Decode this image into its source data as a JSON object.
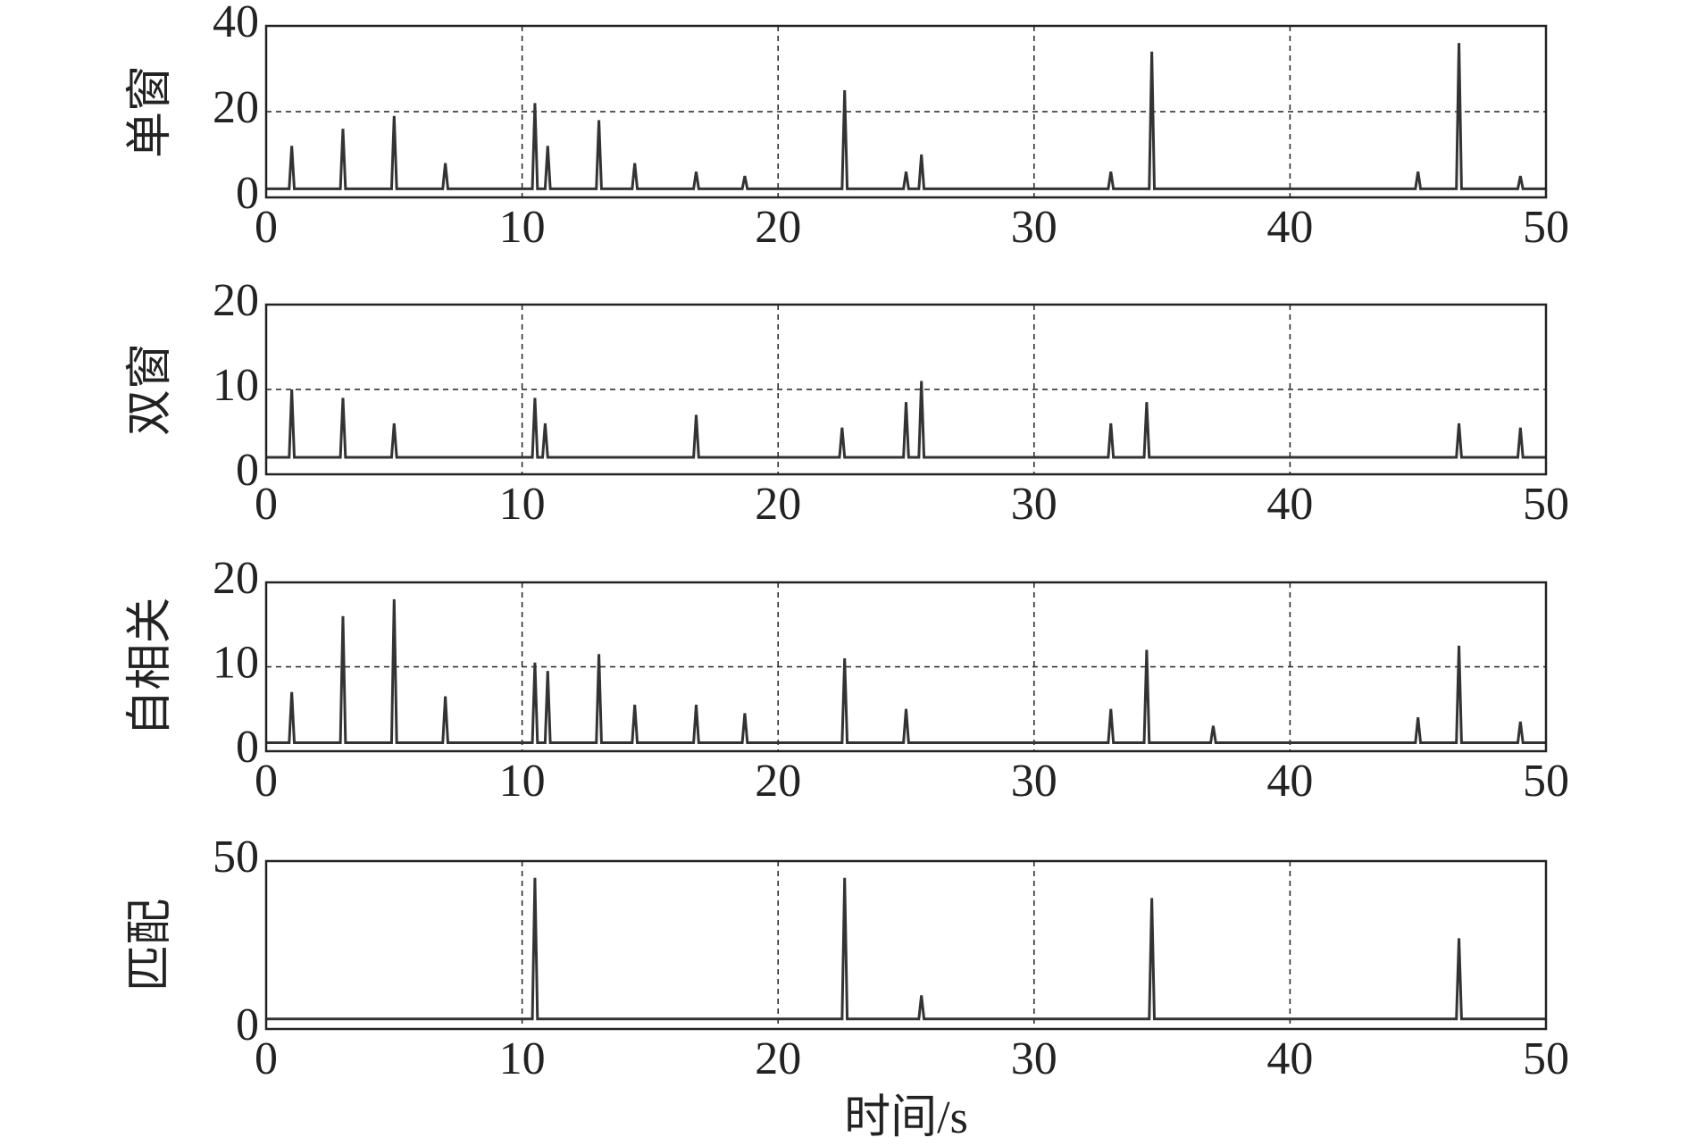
{
  "chart_data": [
    {
      "type": "line",
      "ylabel": "单窗",
      "xlim": [
        0,
        50
      ],
      "xticks": [
        0,
        10,
        20,
        30,
        40,
        50
      ],
      "ylim": [
        0,
        40
      ],
      "yticks": [
        0,
        20,
        40
      ],
      "grid": true,
      "color": "#333333",
      "x": [
        0,
        0.9,
        1.0,
        1.1,
        2.9,
        3.0,
        3.1,
        4.9,
        5.0,
        5.1,
        6.9,
        7.0,
        7.1,
        10.4,
        10.5,
        10.6,
        10.9,
        11.0,
        11.1,
        12.9,
        13.0,
        13.1,
        14.3,
        14.4,
        14.5,
        16.7,
        16.8,
        16.9,
        18.6,
        18.7,
        18.8,
        22.5,
        22.6,
        22.7,
        24.9,
        25.0,
        25.1,
        25.5,
        25.6,
        25.7,
        32.9,
        33.0,
        33.1,
        34.5,
        34.6,
        34.7,
        44.9,
        45.0,
        45.1,
        46.5,
        46.6,
        46.7,
        48.9,
        49.0,
        49.1,
        50
      ],
      "values": [
        2,
        2,
        12,
        2,
        2,
        16,
        2,
        2,
        19,
        2,
        2,
        8,
        2,
        2,
        22,
        2,
        2,
        12,
        2,
        2,
        18,
        2,
        2,
        8,
        2,
        2,
        6,
        2,
        2,
        5,
        2,
        2,
        25,
        2,
        2,
        6,
        2,
        2,
        10,
        2,
        2,
        6,
        2,
        2,
        34,
        2,
        2,
        6,
        2,
        2,
        36,
        2,
        2,
        5,
        2,
        2
      ]
    },
    {
      "type": "line",
      "ylabel": "双窗",
      "xlim": [
        0,
        50
      ],
      "xticks": [
        0,
        10,
        20,
        30,
        40,
        50
      ],
      "ylim": [
        0,
        20
      ],
      "yticks": [
        0,
        10,
        20
      ],
      "grid": true,
      "color": "#333333",
      "x": [
        0,
        0.9,
        1.0,
        1.1,
        2.9,
        3.0,
        3.1,
        4.9,
        5.0,
        5.1,
        10.4,
        10.5,
        10.6,
        10.8,
        10.9,
        11.0,
        16.7,
        16.8,
        16.9,
        22.4,
        22.5,
        22.6,
        24.9,
        25.0,
        25.1,
        25.5,
        25.6,
        25.7,
        32.9,
        33.0,
        33.1,
        34.3,
        34.4,
        34.5,
        46.5,
        46.6,
        46.7,
        48.9,
        49.0,
        49.1,
        50
      ],
      "values": [
        2,
        2,
        10,
        2,
        2,
        9,
        2,
        2,
        6,
        2,
        2,
        9,
        2,
        2,
        6,
        2,
        2,
        7,
        2,
        2,
        5.5,
        2,
        2,
        8.5,
        2,
        2,
        11,
        2,
        2,
        6,
        2,
        2,
        8.5,
        2,
        2,
        6,
        2,
        2,
        5.5,
        2,
        2
      ]
    },
    {
      "type": "line",
      "ylabel": "自相关",
      "xlim": [
        0,
        50
      ],
      "xticks": [
        0,
        10,
        20,
        30,
        40,
        50
      ],
      "ylim": [
        0,
        20
      ],
      "yticks": [
        0,
        10,
        20
      ],
      "grid": true,
      "color": "#333333",
      "x": [
        0,
        0.9,
        1.0,
        1.1,
        2.9,
        3.0,
        3.1,
        4.9,
        5.0,
        5.1,
        6.9,
        7.0,
        7.1,
        10.4,
        10.5,
        10.6,
        10.9,
        11.0,
        11.1,
        12.9,
        13.0,
        13.1,
        14.3,
        14.4,
        14.5,
        16.7,
        16.8,
        16.9,
        18.6,
        18.7,
        18.8,
        22.5,
        22.6,
        22.7,
        24.9,
        25.0,
        25.1,
        32.9,
        33.0,
        33.1,
        34.3,
        34.4,
        34.5,
        36.9,
        37.0,
        37.1,
        44.9,
        45.0,
        45.1,
        46.5,
        46.6,
        46.7,
        48.9,
        49.0,
        49.1,
        50
      ],
      "values": [
        1,
        1,
        7,
        1,
        1,
        16,
        1,
        1,
        18,
        1,
        1,
        6.5,
        1,
        1,
        10.5,
        1,
        1,
        9.5,
        1,
        1,
        11.5,
        1,
        1,
        5.5,
        1,
        1,
        5.5,
        1,
        1,
        4.5,
        1,
        1,
        11,
        1,
        1,
        5,
        1,
        1,
        5,
        1,
        1,
        12,
        1,
        1,
        3,
        1,
        1,
        4,
        1,
        1,
        12.5,
        1,
        1,
        3.5,
        1,
        1
      ]
    },
    {
      "type": "line",
      "ylabel": "匹配",
      "xlabel": "时间/s",
      "xlim": [
        0,
        50
      ],
      "xticks": [
        0,
        10,
        20,
        30,
        40,
        50
      ],
      "ylim": [
        0,
        50
      ],
      "yticks": [
        0,
        50
      ],
      "grid": true,
      "color": "#333333",
      "x": [
        0,
        10.4,
        10.5,
        10.6,
        22.5,
        22.6,
        22.7,
        25.5,
        25.6,
        25.7,
        34.5,
        34.6,
        34.7,
        46.5,
        46.6,
        46.7,
        50
      ],
      "values": [
        3,
        3,
        45,
        3,
        3,
        45,
        3,
        3,
        10,
        3,
        3,
        39,
        3,
        3,
        27,
        3,
        3
      ]
    }
  ]
}
